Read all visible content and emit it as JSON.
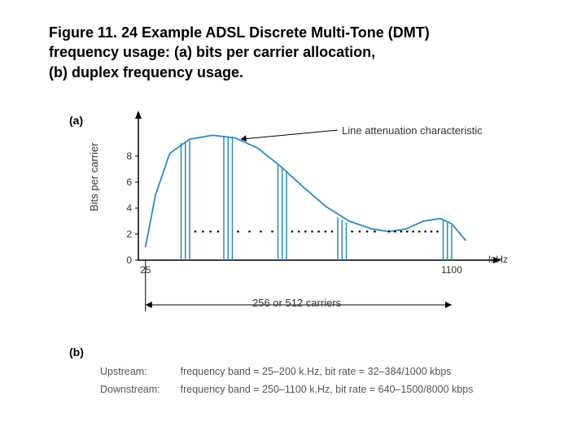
{
  "title_line1": "Figure 11. 24 Example ADSL Discrete Multi-Tone (DMT)",
  "title_line2": "frequency usage: (a) bits per carrier allocation,",
  "title_line3": "(b) duplex frequency usage.",
  "panel_a": "(a)",
  "panel_b": "(b)",
  "y_label": "Bits per carrier",
  "x_unit": "k.Hz",
  "annotation_curve": "Line attenuation characteristic",
  "carriers_label": "256 or 512 carriers",
  "chart": {
    "type": "line+bars",
    "background_color": "#ffffff",
    "axis_color": "#000000",
    "curve_color": "#2a8bbd",
    "curve_width": 1.8,
    "bar_color": "#2a8bbd",
    "bar_width": 1.5,
    "arrow_color": "#000000",
    "dot_color": "#000000",
    "y_ticks": [
      0,
      2,
      4,
      6,
      8
    ],
    "y_range": [
      0,
      10
    ],
    "x_ticks_labels": {
      "25": 25,
      "1100": 1100
    },
    "x_range": [
      0,
      1200
    ],
    "curve_points": [
      [
        25,
        1.0
      ],
      [
        60,
        5.0
      ],
      [
        110,
        8.2
      ],
      [
        180,
        9.3
      ],
      [
        260,
        9.6
      ],
      [
        340,
        9.4
      ],
      [
        420,
        8.6
      ],
      [
        500,
        7.2
      ],
      [
        580,
        5.6
      ],
      [
        660,
        4.1
      ],
      [
        740,
        3.0
      ],
      [
        820,
        2.4
      ],
      [
        880,
        2.2
      ],
      [
        940,
        2.4
      ],
      [
        1000,
        3.0
      ],
      [
        1060,
        3.2
      ],
      [
        1100,
        2.8
      ],
      [
        1150,
        1.5
      ]
    ],
    "bars": [
      [
        150,
        9.0
      ],
      [
        165,
        9.1
      ],
      [
        180,
        9.2
      ],
      [
        300,
        9.5
      ],
      [
        315,
        9.5
      ],
      [
        330,
        9.5
      ],
      [
        490,
        7.4
      ],
      [
        505,
        7.1
      ],
      [
        520,
        6.8
      ],
      [
        700,
        3.3
      ],
      [
        715,
        3.1
      ],
      [
        730,
        2.9
      ],
      [
        1070,
        3.1
      ],
      [
        1085,
        3.0
      ],
      [
        1100,
        2.7
      ]
    ],
    "dot_groups": [
      {
        "x_start": 200,
        "x_end": 280,
        "y": 2.2,
        "n": 4
      },
      {
        "x_start": 350,
        "x_end": 470,
        "y": 2.2,
        "n": 4
      },
      {
        "x_start": 540,
        "x_end": 680,
        "y": 2.2,
        "n": 7
      },
      {
        "x_start": 750,
        "x_end": 830,
        "y": 2.2,
        "n": 4
      },
      {
        "x_start": 880,
        "x_end": 1050,
        "y": 2.2,
        "n": 9
      }
    ]
  },
  "b_rows": [
    {
      "dir": "Upstream:",
      "band": "frequency band = 25–200 k.Hz, bit rate = 32–384/1000 kbps"
    },
    {
      "dir": "Downstream:",
      "band": "frequency band = 250–1100 k.Hz, bit rate = 640–1500/8000 kbps"
    }
  ],
  "label_fontsize": 13,
  "tick_fontsize": 12,
  "title_fontsize": 18
}
